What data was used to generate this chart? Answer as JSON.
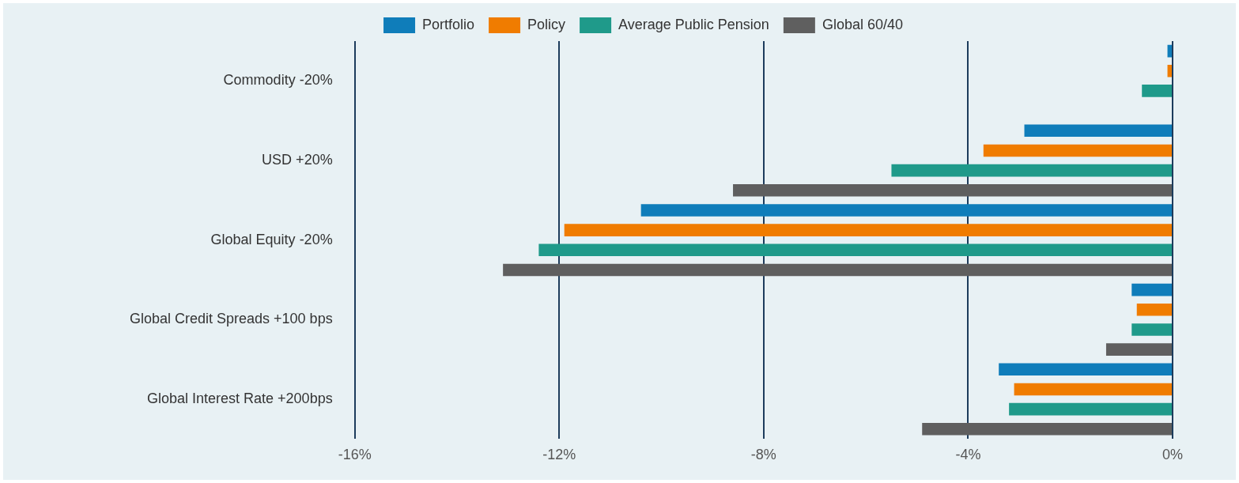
{
  "chart_data": {
    "type": "bar",
    "orientation": "horizontal",
    "categories": [
      "Commodity -20%",
      "USD +20%",
      "Global Equity -20%",
      "Global Credit Spreads +100 bps",
      "Global Interest Rate +200bps"
    ],
    "series": [
      {
        "name": "Portfolio",
        "color": "#0f7dba",
        "values": [
          -0.1,
          -2.9,
          -10.4,
          -0.8,
          -3.4
        ]
      },
      {
        "name": "Policy",
        "color": "#f07c00",
        "values": [
          -0.1,
          -3.7,
          -11.9,
          -0.7,
          -3.1
        ]
      },
      {
        "name": "Average Public Pension",
        "color": "#1f9a8a",
        "values": [
          -0.6,
          -5.5,
          -12.4,
          -0.8,
          -3.2
        ]
      },
      {
        "name": "Global 60/40",
        "color": "#5f5f5f",
        "values": [
          0,
          -8.6,
          -13.1,
          -1.3,
          -4.9
        ]
      }
    ],
    "xlim": [
      -16,
      0
    ],
    "xticks": [
      {
        "value": -16,
        "label": "-16%"
      },
      {
        "value": -12,
        "label": "-12%"
      },
      {
        "value": -8,
        "label": "-8%"
      },
      {
        "value": -4,
        "label": "-4%"
      },
      {
        "value": 0,
        "label": "0%"
      }
    ],
    "grid": "x",
    "legend": "top"
  }
}
